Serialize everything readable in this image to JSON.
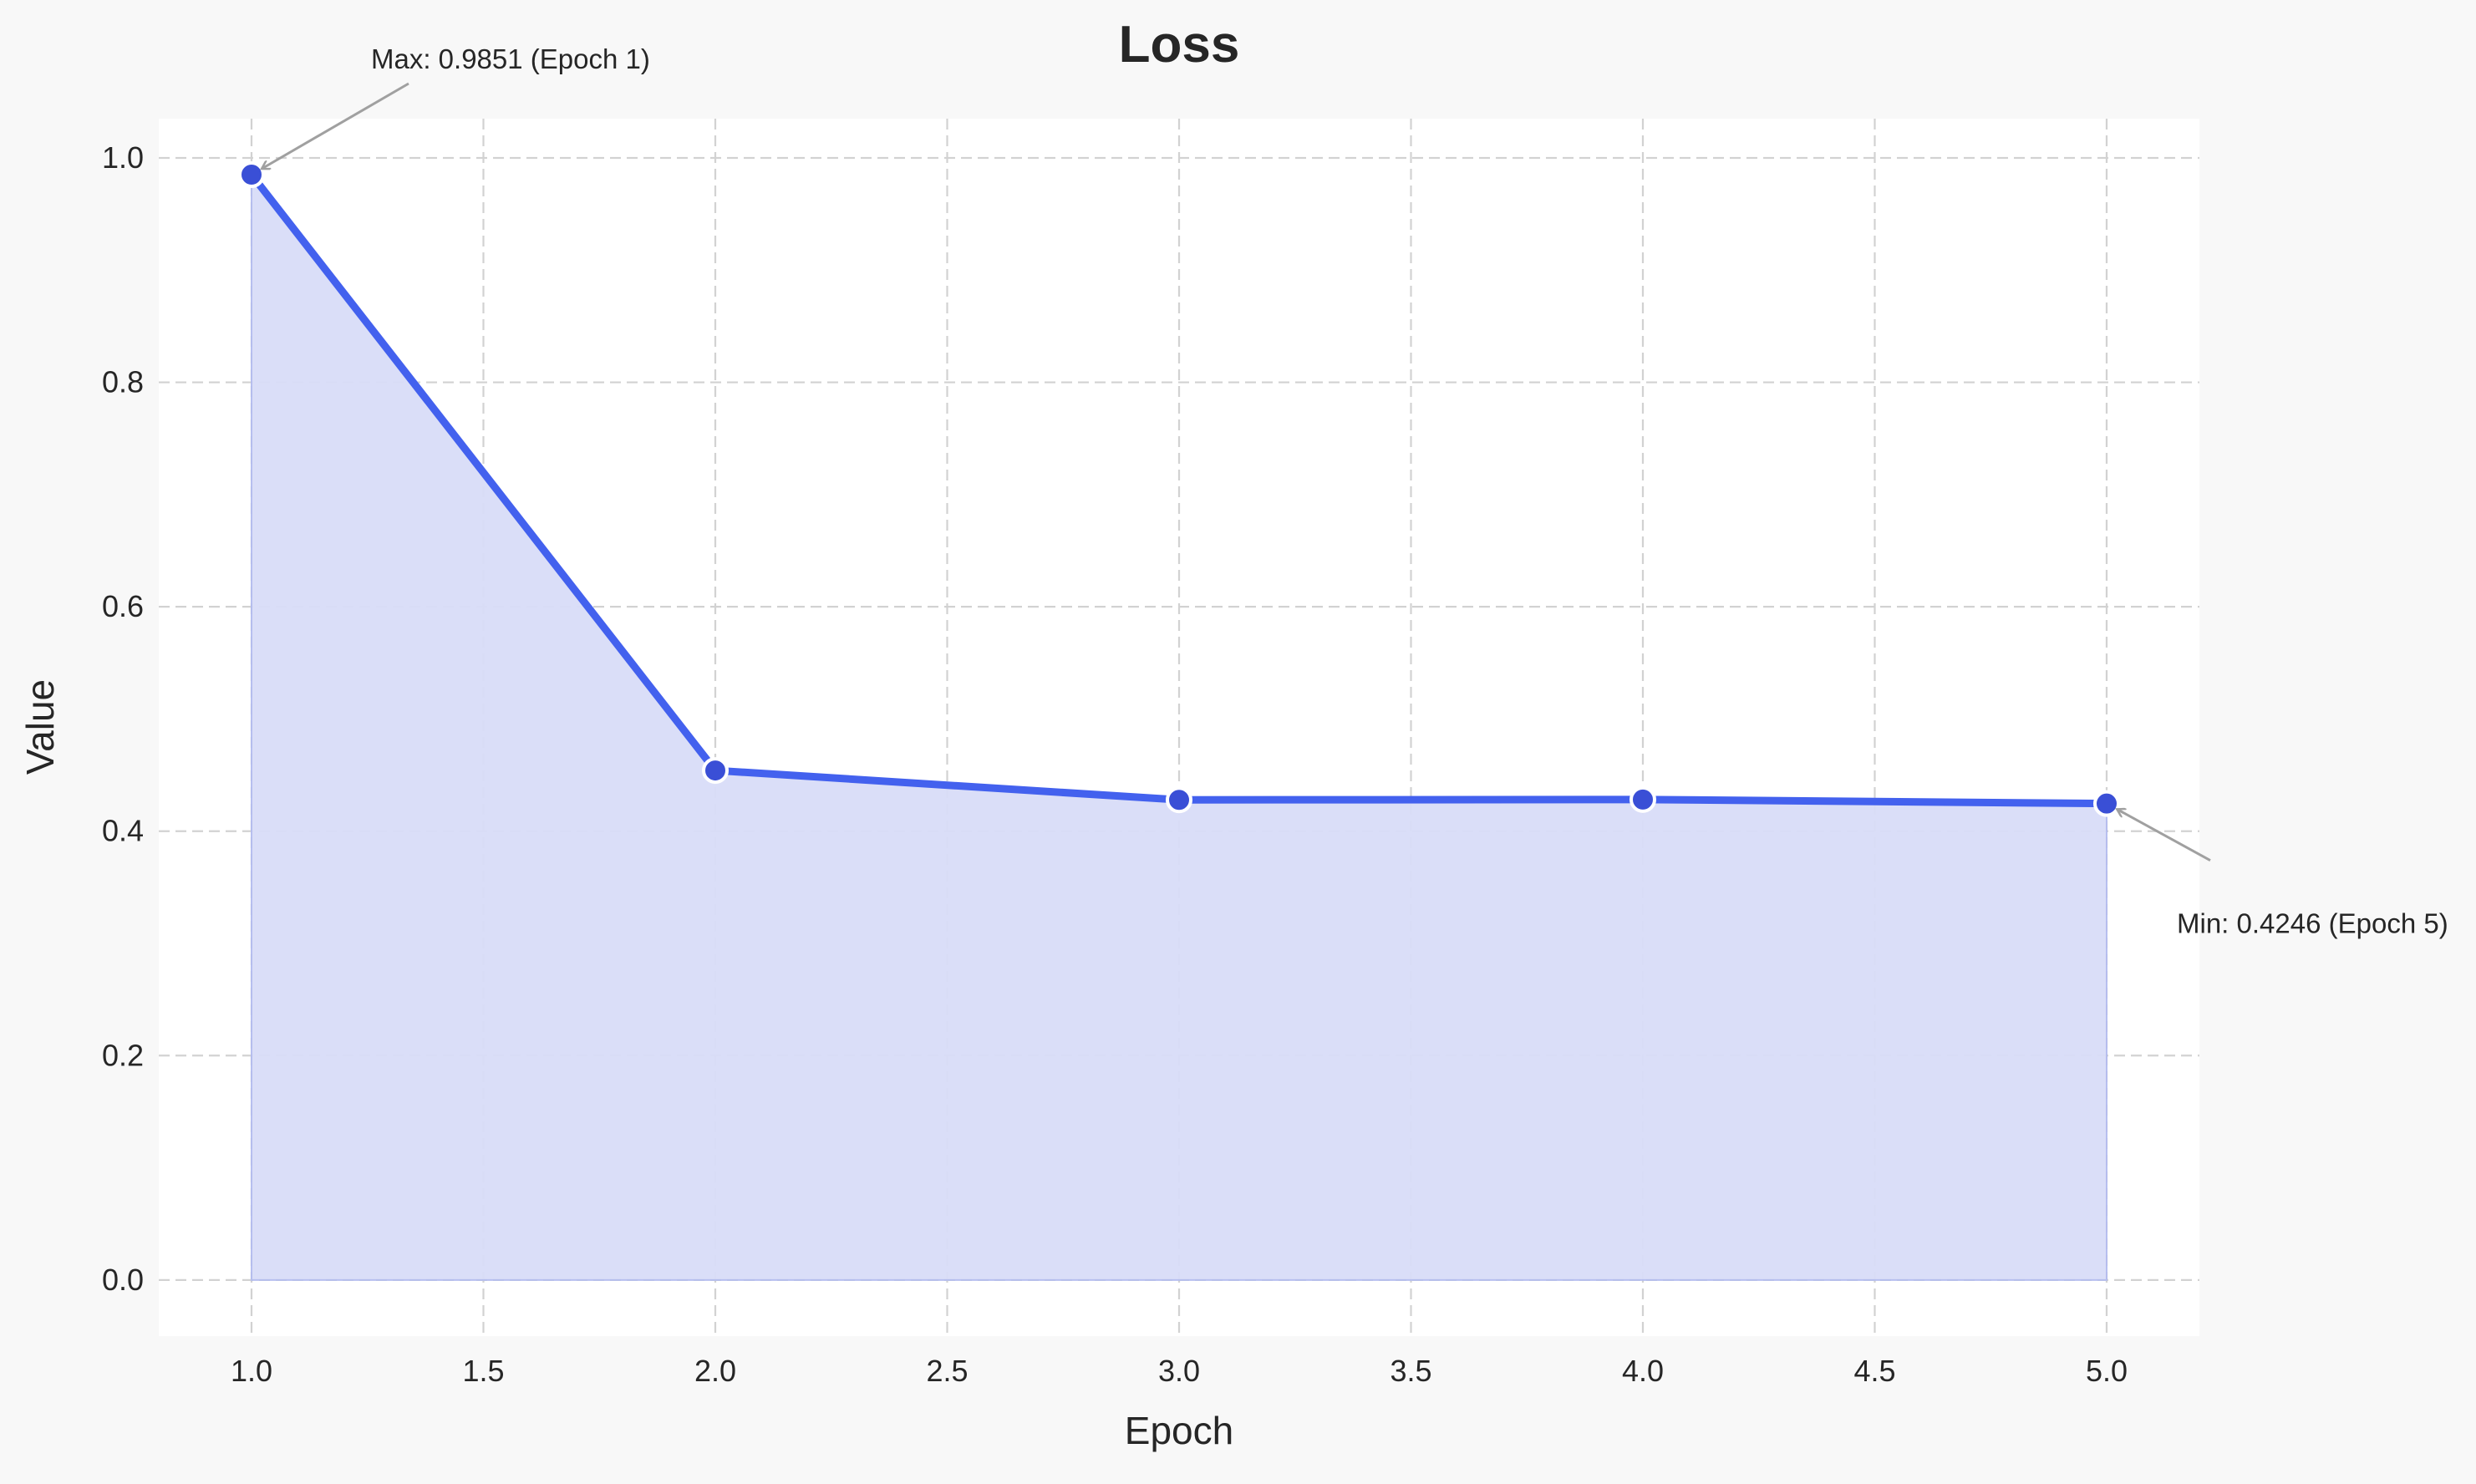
{
  "chart_data": {
    "type": "line",
    "title": "Loss",
    "xlabel": "Epoch",
    "ylabel": "Value",
    "x": [
      1,
      2,
      3,
      4,
      5
    ],
    "series": [
      {
        "values": [
          0.9851,
          0.4541,
          0.4279,
          0.4282,
          0.4246
        ]
      }
    ],
    "xlim": [
      0.8,
      5.2
    ],
    "ylim": [
      -0.05,
      1.035
    ],
    "xticks": [
      "1.0",
      "1.5",
      "2.0",
      "2.5",
      "3.0",
      "3.5",
      "4.0",
      "4.5",
      "5.0"
    ],
    "yticks": [
      "0.0",
      "0.2",
      "0.4",
      "0.6",
      "0.8",
      "1.0"
    ],
    "grid": true,
    "fill_under_line": true,
    "annotations": {
      "max": {
        "text": "Max: 0.9851 (Epoch 1)",
        "x": 1,
        "y": 0.9851
      },
      "min": {
        "text": "Min: 0.4246 (Epoch 5)",
        "x": 5,
        "y": 0.4246
      }
    },
    "colors": {
      "line": "#4361ee",
      "fill": "#d9ddf8",
      "marker": "#3a4fd6",
      "marker_edge": "#ffffff",
      "annotation_arrow": "#a0a0a0",
      "grid": "#d2d2d2",
      "plot_background": "#ffffff",
      "figure_background": "#f8f8f8"
    }
  }
}
